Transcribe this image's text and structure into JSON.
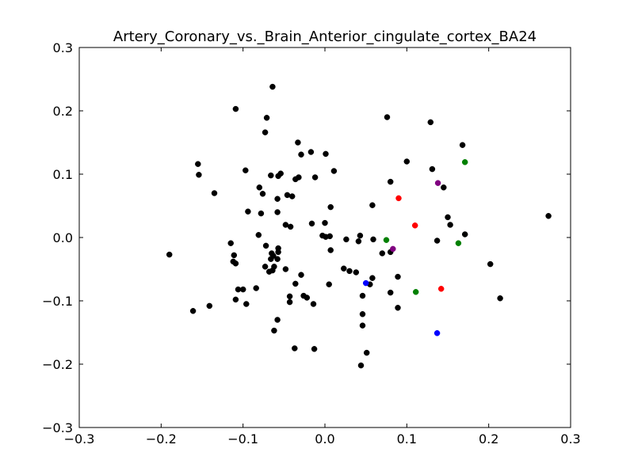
{
  "chart_data": {
    "type": "scatter",
    "title": "Artery_Coronary_vs._Brain_Anterior_cingulate_cortex_BA24",
    "xlabel": "",
    "ylabel": "",
    "xlim": [
      -0.3,
      0.3
    ],
    "ylim": [
      -0.3,
      0.3
    ],
    "grid": false,
    "x_ticks": [
      -0.3,
      -0.2,
      -0.1,
      0.0,
      0.1,
      0.2,
      0.3
    ],
    "x_tick_labels": [
      "−0.3",
      "−0.2",
      "−0.1",
      "0.0",
      "0.1",
      "0.2",
      "0.3"
    ],
    "y_ticks": [
      -0.3,
      -0.2,
      -0.1,
      0.0,
      0.1,
      0.2,
      0.3
    ],
    "y_tick_labels": [
      "−0.3",
      "−0.2",
      "−0.1",
      "0.0",
      "0.1",
      "0.2",
      "0.3"
    ],
    "series": [
      {
        "color": "#000000",
        "points": [
          [
            -0.064,
            0.238
          ],
          [
            -0.109,
            0.203
          ],
          [
            -0.071,
            0.189
          ],
          [
            -0.073,
            0.166
          ],
          [
            0.076,
            0.19
          ],
          [
            0.129,
            0.182
          ],
          [
            0.168,
            0.146
          ],
          [
            -0.155,
            0.116
          ],
          [
            -0.154,
            0.099
          ],
          [
            -0.135,
            0.07
          ],
          [
            -0.097,
            0.106
          ],
          [
            -0.08,
            0.079
          ],
          [
            -0.076,
            0.069
          ],
          [
            -0.066,
            0.098
          ],
          [
            -0.057,
            0.097
          ],
          [
            -0.054,
            0.101
          ],
          [
            -0.046,
            0.067
          ],
          [
            -0.04,
            0.065
          ],
          [
            -0.036,
            0.092
          ],
          [
            -0.032,
            0.095
          ],
          [
            -0.033,
            0.15
          ],
          [
            -0.029,
            0.131
          ],
          [
            -0.017,
            0.135
          ],
          [
            0.001,
            0.132
          ],
          [
            0.011,
            0.105
          ],
          [
            -0.012,
            0.095
          ],
          [
            -0.058,
            0.061
          ],
          [
            -0.058,
            0.04
          ],
          [
            -0.094,
            0.041
          ],
          [
            -0.078,
            0.038
          ],
          [
            -0.048,
            0.02
          ],
          [
            -0.042,
            0.017
          ],
          [
            -0.016,
            0.022
          ],
          [
            0.007,
            0.048
          ],
          [
            0.058,
            0.051
          ],
          [
            0.08,
            0.088
          ],
          [
            0.1,
            0.12
          ],
          [
            0.131,
            0.108
          ],
          [
            0.145,
            0.079
          ],
          [
            0.15,
            0.032
          ],
          [
            0.153,
            0.02
          ],
          [
            0.137,
            -0.005
          ],
          [
            0.171,
            0.005
          ],
          [
            0.273,
            0.034
          ],
          [
            -0.19,
            -0.027
          ],
          [
            -0.115,
            -0.009
          ],
          [
            -0.112,
            -0.038
          ],
          [
            -0.109,
            -0.041
          ],
          [
            -0.111,
            -0.028
          ],
          [
            -0.081,
            0.004
          ],
          [
            -0.072,
            -0.013
          ],
          [
            -0.065,
            -0.025
          ],
          [
            -0.063,
            -0.029
          ],
          [
            -0.066,
            -0.034
          ],
          [
            -0.062,
            -0.046
          ],
          [
            -0.064,
            -0.052
          ],
          [
            -0.068,
            -0.054
          ],
          [
            -0.057,
            -0.017
          ],
          [
            -0.057,
            -0.023
          ],
          [
            -0.048,
            -0.05
          ],
          [
            -0.058,
            -0.034
          ],
          [
            -0.073,
            -0.046
          ],
          [
            -0.029,
            -0.059
          ],
          [
            -0.036,
            -0.073
          ],
          [
            -0.003,
            0.003
          ],
          [
            0.0,
            0.023
          ],
          [
            0.001,
            0.001
          ],
          [
            0.006,
            0.002
          ],
          [
            0.007,
            -0.02
          ],
          [
            0.026,
            -0.003
          ],
          [
            0.041,
            -0.006
          ],
          [
            0.043,
            0.003
          ],
          [
            0.059,
            -0.003
          ],
          [
            0.07,
            -0.025
          ],
          [
            0.08,
            -0.023
          ],
          [
            0.023,
            -0.049
          ],
          [
            0.03,
            -0.053
          ],
          [
            0.038,
            -0.055
          ],
          [
            0.005,
            -0.074
          ],
          [
            0.055,
            -0.074
          ],
          [
            0.058,
            -0.064
          ],
          [
            0.089,
            -0.062
          ],
          [
            0.08,
            -0.087
          ],
          [
            -0.106,
            -0.082
          ],
          [
            -0.1,
            -0.082
          ],
          [
            -0.084,
            -0.08
          ],
          [
            -0.109,
            -0.098
          ],
          [
            -0.096,
            -0.105
          ],
          [
            -0.141,
            -0.108
          ],
          [
            -0.161,
            -0.116
          ],
          [
            -0.043,
            -0.093
          ],
          [
            -0.043,
            -0.102
          ],
          [
            -0.026,
            -0.092
          ],
          [
            -0.022,
            -0.095
          ],
          [
            -0.014,
            -0.105
          ],
          [
            0.046,
            -0.092
          ],
          [
            0.089,
            -0.111
          ],
          [
            0.046,
            -0.121
          ],
          [
            0.046,
            -0.139
          ],
          [
            -0.058,
            -0.13
          ],
          [
            -0.062,
            -0.147
          ],
          [
            -0.037,
            -0.175
          ],
          [
            -0.013,
            -0.176
          ],
          [
            0.051,
            -0.182
          ],
          [
            0.044,
            -0.202
          ],
          [
            0.202,
            -0.042
          ],
          [
            0.214,
            -0.096
          ]
        ]
      },
      {
        "color": "#ff0000",
        "points": [
          [
            0.09,
            0.062
          ],
          [
            0.11,
            0.019
          ],
          [
            0.142,
            -0.081
          ]
        ]
      },
      {
        "color": "#008000",
        "points": [
          [
            0.171,
            0.119
          ],
          [
            0.163,
            -0.009
          ],
          [
            0.075,
            -0.004
          ],
          [
            0.111,
            -0.086
          ]
        ]
      },
      {
        "color": "#800080",
        "points": [
          [
            0.138,
            0.086
          ],
          [
            0.083,
            -0.018
          ]
        ]
      },
      {
        "color": "#0000ff",
        "points": [
          [
            0.05,
            -0.072
          ],
          [
            0.137,
            -0.151
          ]
        ]
      }
    ]
  }
}
